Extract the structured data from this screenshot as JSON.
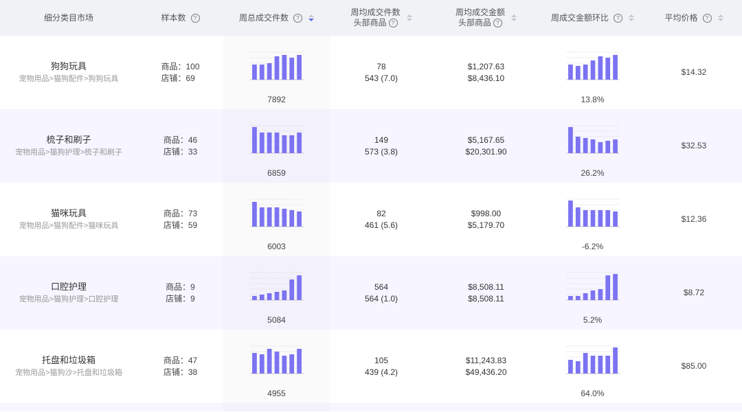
{
  "headers": {
    "category": "细分类目市场",
    "sample": "样本数",
    "weekly_total": "周总成交件数",
    "weekly_avg_line1": "周均成交件数",
    "weekly_avg_line2": "头部商品",
    "weekly_amount_line1": "周均成交金额",
    "weekly_amount_line2": "头部商品",
    "weekly_change": "周成交金额环比",
    "avg_price": "平均价格",
    "help_icon_glyph": "?"
  },
  "colors": {
    "bar": "#7b73f2",
    "grid": "#d0d0d0",
    "accent": "#5b6ee1"
  },
  "rows": [
    {
      "name": "狗狗玩具",
      "path": "宠物用品>猫狗配件>狗狗玩具",
      "products": "商品：100",
      "shops": "店铺：69",
      "total_bars": [
        0.55,
        0.55,
        0.6,
        0.85,
        0.9,
        0.8,
        0.9
      ],
      "total_value": "7892",
      "avg_count": "78",
      "avg_count_sub": "543 (7.0)",
      "avg_amount": "$1,207.63",
      "avg_amount_sub": "$8,436.10",
      "change_bars": [
        0.55,
        0.5,
        0.55,
        0.7,
        0.85,
        0.8,
        0.9
      ],
      "change_value": "13.8%",
      "price": "$14.32"
    },
    {
      "name": "梳子和刷子",
      "path": "宠物用品>猫狗护理>梳子和刷子",
      "products": "商品：46",
      "shops": "店铺：33",
      "total_bars": [
        0.95,
        0.75,
        0.75,
        0.75,
        0.65,
        0.65,
        0.75
      ],
      "total_value": "6859",
      "avg_count": "149",
      "avg_count_sub": "573 (3.8)",
      "avg_amount": "$5,167.65",
      "avg_amount_sub": "$20,301.90",
      "change_bars": [
        0.95,
        0.6,
        0.55,
        0.5,
        0.4,
        0.45,
        0.5
      ],
      "change_value": "26.2%",
      "price": "$32.53"
    },
    {
      "name": "猫咪玩具",
      "path": "宠物用品>猫狗配件>猫咪玩具",
      "products": "商品：73",
      "shops": "店铺：59",
      "total_bars": [
        0.9,
        0.7,
        0.7,
        0.7,
        0.65,
        0.6,
        0.55
      ],
      "total_value": "6003",
      "avg_count": "82",
      "avg_count_sub": "461 (5.6)",
      "avg_amount": "$998.00",
      "avg_amount_sub": "$5,179.70",
      "change_bars": [
        0.95,
        0.7,
        0.6,
        0.6,
        0.6,
        0.6,
        0.55
      ],
      "change_value": "-6.2%",
      "price": "$12.36"
    },
    {
      "name": "口腔护理",
      "path": "宠物用品>猫狗护理>口腔护理",
      "products": "商品：9",
      "shops": "店铺：9",
      "total_bars": [
        0.15,
        0.2,
        0.25,
        0.3,
        0.35,
        0.75,
        0.9
      ],
      "total_value": "5084",
      "avg_count": "564",
      "avg_count_sub": "564 (1.0)",
      "avg_amount": "$8,508.11",
      "avg_amount_sub": "$8,508.11",
      "change_bars": [
        0.15,
        0.15,
        0.25,
        0.35,
        0.4,
        0.9,
        0.95
      ],
      "change_value": "5.2%",
      "price": "$8.72"
    },
    {
      "name": "托盘和垃圾箱",
      "path": "宠物用品>猫狗沙>托盘和垃圾箱",
      "products": "商品：47",
      "shops": "店铺：38",
      "total_bars": [
        0.75,
        0.7,
        0.9,
        0.8,
        0.65,
        0.7,
        0.9
      ],
      "total_value": "4955",
      "avg_count": "105",
      "avg_count_sub": "439 (4.2)",
      "avg_amount": "$11,243.83",
      "avg_amount_sub": "$49,436.20",
      "change_bars": [
        0.5,
        0.45,
        0.75,
        0.65,
        0.65,
        0.65,
        0.95
      ],
      "change_value": "64.0%",
      "price": "$85.00"
    }
  ]
}
